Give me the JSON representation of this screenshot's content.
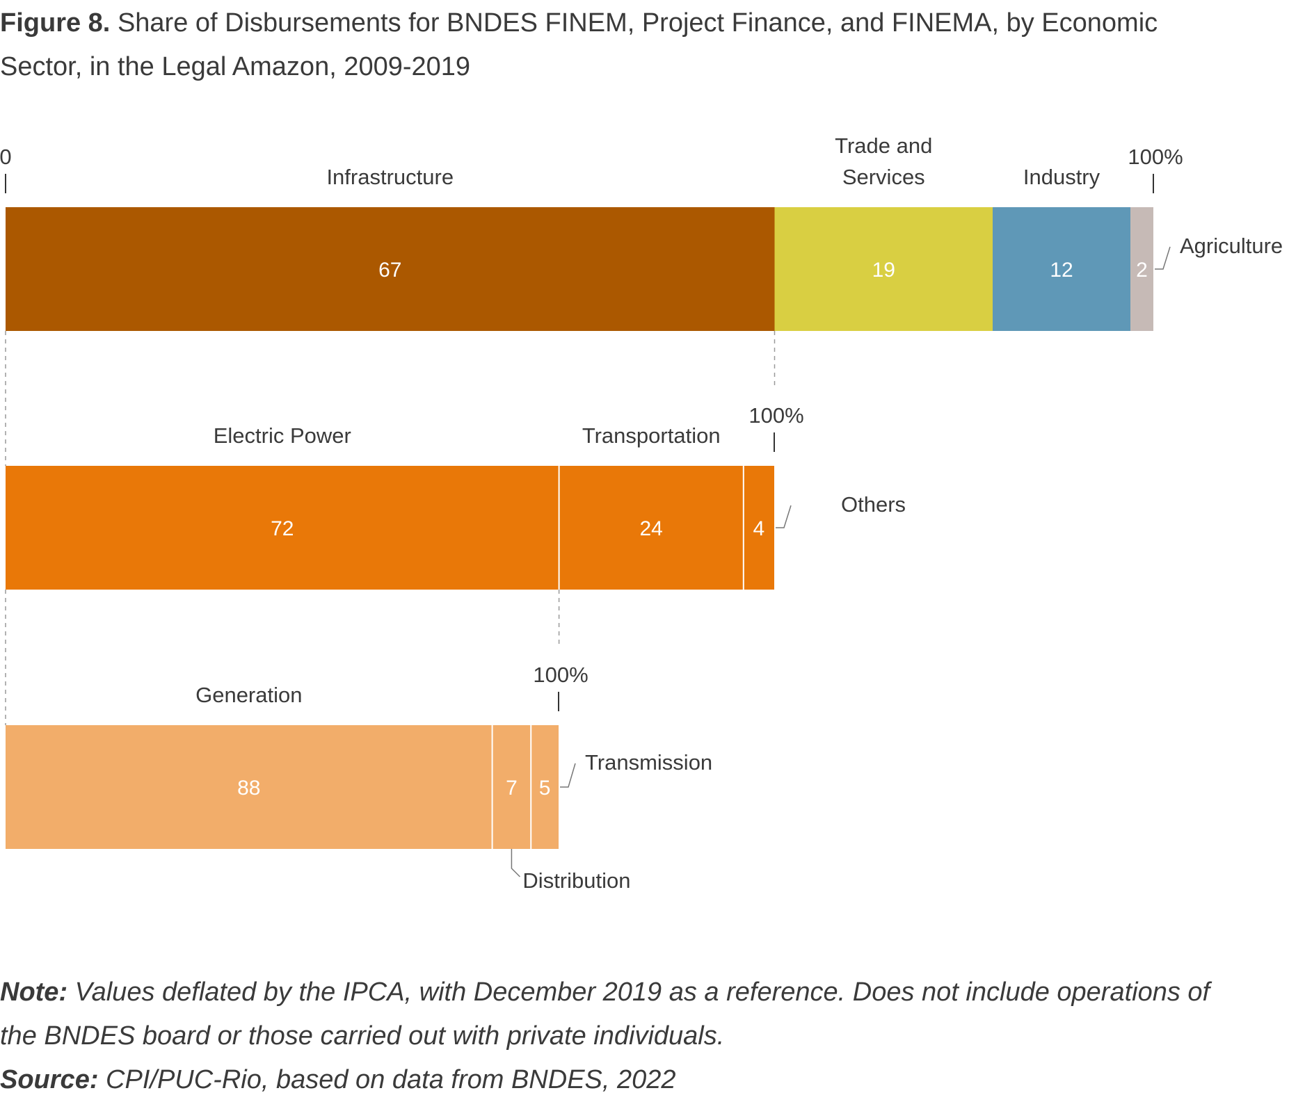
{
  "title": {
    "figure_label": "Figure 8.",
    "text": "Share of Disbursements for BNDES FINEM, Project Finance, and FINEMA, by Economic Sector, in the Legal Amazon, 2009-2019"
  },
  "chart_data": {
    "type": "bar",
    "stacked": true,
    "orientation": "horizontal",
    "unit": "%",
    "scale_start_label": "0",
    "scale_end_label": "100%",
    "bars": [
      {
        "segments": [
          {
            "name": "Infrastructure",
            "value": 67,
            "color": "#ab5800"
          },
          {
            "name": "Trade and Services",
            "value": 19,
            "color": "#d9cf42"
          },
          {
            "name": "Industry",
            "value": 12,
            "color": "#5f98b7"
          },
          {
            "name": "Agriculture",
            "value": 2,
            "color": "#c6bab6"
          }
        ]
      },
      {
        "parent": "Infrastructure",
        "segments": [
          {
            "name": "Electric Power",
            "value": 72,
            "color": "#e97808"
          },
          {
            "name": "Transportation",
            "value": 24,
            "color": "#e97808"
          },
          {
            "name": "Others",
            "value": 4,
            "color": "#e97808"
          }
        ]
      },
      {
        "parent": "Electric Power",
        "segments": [
          {
            "name": "Generation",
            "value": 88,
            "color": "#f2ad6a"
          },
          {
            "name": "Distribution",
            "value": 7,
            "color": "#f2ad6a"
          },
          {
            "name": "Transmission",
            "value": 5,
            "color": "#f2ad6a"
          }
        ]
      }
    ],
    "label_colors": {
      "on_dark": "#ffffff",
      "on_light": "#ffffff",
      "text": "#3a3a3a",
      "connector": "#777777"
    }
  },
  "notes": {
    "note_label": "Note:",
    "note_text": "Values deflated by the IPCA, with December 2019 as a reference. Does not include operations of the BNDES board or those carried out with private individuals.",
    "source_label": "Source:",
    "source_text": "CPI/PUC-Rio, based on data from BNDES, 2022"
  }
}
